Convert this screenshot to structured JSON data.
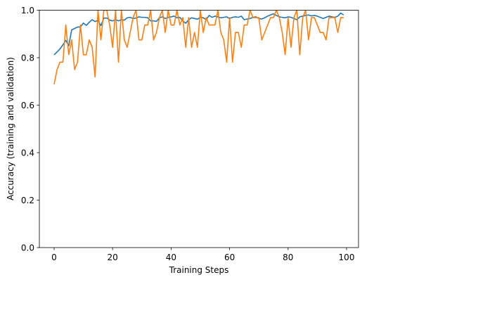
{
  "chart_data": {
    "type": "line",
    "title": "",
    "xlabel": "Training Steps",
    "ylabel": "Accuracy (training and validation)",
    "xlim": [
      -5,
      104
    ],
    "ylim": [
      0.0,
      1.0
    ],
    "xticks": [
      0,
      20,
      40,
      60,
      80,
      100
    ],
    "xtick_labels": [
      "0",
      "20",
      "40",
      "60",
      "80",
      "100"
    ],
    "yticks": [
      0.0,
      0.2,
      0.4,
      0.6,
      0.8,
      1.0
    ],
    "ytick_labels": [
      "0.0",
      "0.2",
      "0.4",
      "0.6",
      "0.8",
      "1.0"
    ],
    "grid": false,
    "legend": null,
    "series": [
      {
        "name": "training",
        "color": "#1f77b4",
        "values": [
          0.812,
          0.824,
          0.837,
          0.854,
          0.873,
          0.85,
          0.917,
          0.923,
          0.929,
          0.929,
          0.946,
          0.936,
          0.949,
          0.96,
          0.952,
          0.958,
          0.935,
          0.967,
          0.967,
          0.958,
          0.955,
          0.96,
          0.955,
          0.96,
          0.958,
          0.968,
          0.97,
          0.965,
          0.967,
          0.972,
          0.97,
          0.97,
          0.968,
          0.955,
          0.955,
          0.953,
          0.968,
          0.972,
          0.965,
          0.97,
          0.972,
          0.975,
          0.968,
          0.97,
          0.955,
          0.945,
          0.96,
          0.968,
          0.965,
          0.962,
          0.97,
          0.968,
          0.96,
          0.978,
          0.97,
          0.975,
          0.972,
          0.968,
          0.97,
          0.972,
          0.965,
          0.97,
          0.972,
          0.97,
          0.975,
          0.96,
          0.963,
          0.965,
          0.97,
          0.972,
          0.965,
          0.963,
          0.968,
          0.975,
          0.98,
          0.985,
          0.978,
          0.972,
          0.97,
          0.968,
          0.972,
          0.97,
          0.965,
          0.96,
          0.972,
          0.975,
          0.978,
          0.98,
          0.976,
          0.978,
          0.975,
          0.97,
          0.965,
          0.97,
          0.975,
          0.972,
          0.97,
          0.975,
          0.988,
          0.98
        ]
      },
      {
        "name": "validation",
        "color": "#ff7f0e",
        "values": [
          0.6875,
          0.75,
          0.78125,
          0.78125,
          0.9375,
          0.8125,
          0.875,
          0.75,
          0.78125,
          0.9375,
          0.8125,
          0.8125,
          0.875,
          0.84375,
          0.71875,
          1.0,
          0.875,
          1.0,
          1.0,
          0.9375,
          0.84375,
          1.0,
          0.78125,
          1.0,
          0.875,
          0.84375,
          0.90625,
          0.96875,
          1.0,
          0.875,
          0.875,
          0.9375,
          0.9375,
          1.0,
          0.875,
          0.90625,
          0.96875,
          1.0,
          0.90625,
          1.0,
          0.9375,
          0.9375,
          1.0,
          0.9375,
          0.96875,
          0.84375,
          0.96875,
          0.84375,
          0.90625,
          0.84375,
          1.0,
          0.90625,
          0.96875,
          0.9375,
          0.9375,
          0.9375,
          1.0,
          0.90625,
          0.875,
          0.78125,
          0.96875,
          0.78125,
          0.90625,
          0.90625,
          0.84375,
          0.9375,
          0.9375,
          1.0,
          0.96875,
          0.96875,
          0.96875,
          0.875,
          0.90625,
          0.9375,
          0.96875,
          0.96875,
          1.0,
          0.96875,
          0.90625,
          0.8125,
          0.96875,
          0.84375,
          0.96875,
          1.0,
          0.8125,
          0.96875,
          1.0,
          0.875,
          0.96875,
          0.96875,
          0.9375,
          0.90625,
          0.90625,
          0.875,
          0.96875,
          0.96875,
          0.96875,
          0.90625,
          0.96875,
          0.96875
        ]
      }
    ]
  }
}
